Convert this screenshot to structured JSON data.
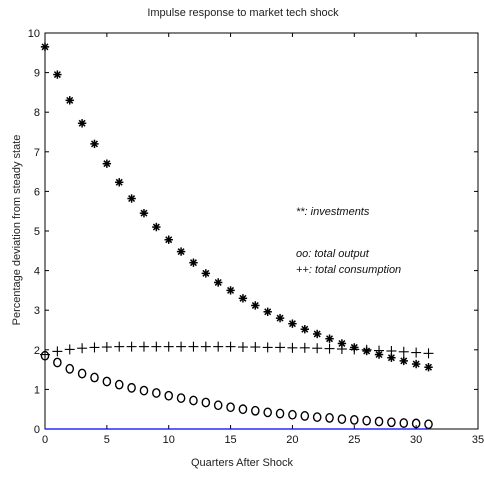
{
  "chart_data": {
    "type": "scatter",
    "title": "Impulse response to market tech shock",
    "xlabel": "Quarters After Shock",
    "ylabel": "Percentage deviation from steady state",
    "xlim": [
      0,
      35
    ],
    "ylim": [
      0,
      10
    ],
    "xticks": [
      0,
      5,
      10,
      15,
      20,
      25,
      30,
      35
    ],
    "yticks": [
      0,
      1,
      2,
      3,
      4,
      5,
      6,
      7,
      8,
      9,
      10
    ],
    "grid": false,
    "x": [
      0,
      1,
      2,
      3,
      4,
      5,
      6,
      7,
      8,
      9,
      10,
      11,
      12,
      13,
      14,
      15,
      16,
      17,
      18,
      19,
      20,
      21,
      22,
      23,
      24,
      25,
      26,
      27,
      28,
      29,
      30,
      31
    ],
    "series": [
      {
        "name": "investments",
        "marker": "*",
        "values": [
          9.65,
          8.95,
          8.3,
          7.72,
          7.2,
          6.7,
          6.23,
          5.82,
          5.45,
          5.1,
          4.78,
          4.48,
          4.2,
          3.93,
          3.7,
          3.5,
          3.3,
          3.12,
          2.96,
          2.8,
          2.66,
          2.52,
          2.4,
          2.28,
          2.16,
          2.06,
          1.97,
          1.88,
          1.8,
          1.72,
          1.64,
          1.56
        ]
      },
      {
        "name": "total output",
        "marker": "o",
        "values": [
          1.85,
          1.68,
          1.52,
          1.4,
          1.3,
          1.2,
          1.12,
          1.04,
          0.97,
          0.91,
          0.84,
          0.78,
          0.72,
          0.67,
          0.6,
          0.55,
          0.5,
          0.46,
          0.42,
          0.39,
          0.36,
          0.33,
          0.3,
          0.28,
          0.25,
          0.23,
          0.21,
          0.19,
          0.17,
          0.15,
          0.14,
          0.12
        ]
      },
      {
        "name": "total consumption",
        "marker": "+",
        "values": [
          1.88,
          1.96,
          2.01,
          2.04,
          2.06,
          2.07,
          2.08,
          2.08,
          2.08,
          2.08,
          2.08,
          2.08,
          2.08,
          2.08,
          2.08,
          2.08,
          2.07,
          2.07,
          2.06,
          2.06,
          2.05,
          2.05,
          2.04,
          2.03,
          2.02,
          2.01,
          2.0,
          1.98,
          1.97,
          1.95,
          1.93,
          1.91
        ]
      },
      {
        "name": "zero line",
        "marker": "line",
        "color": "#0000ff",
        "values": [
          0,
          0,
          0,
          0,
          0,
          0,
          0,
          0,
          0,
          0,
          0,
          0,
          0,
          0,
          0,
          0,
          0,
          0,
          0,
          0,
          0,
          0,
          0,
          0,
          0,
          0,
          0,
          0,
          0,
          0,
          0,
          0
        ]
      }
    ],
    "legend": {
      "placement": "right-middle",
      "items": [
        "**: investments",
        "oo: total output",
        "++: total consumption"
      ]
    }
  }
}
